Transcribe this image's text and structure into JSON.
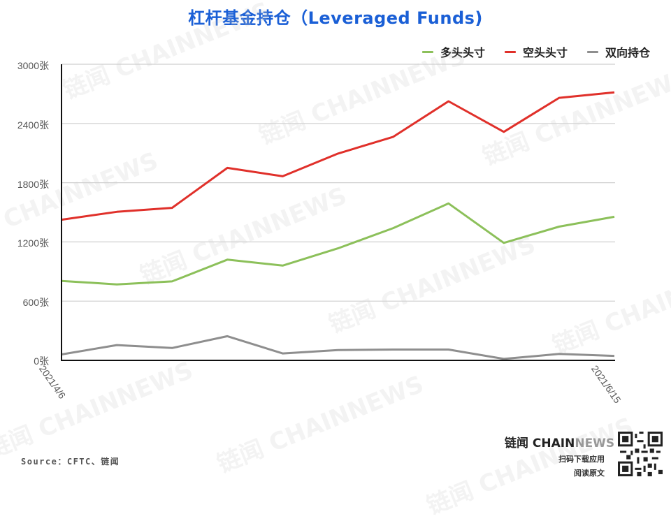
{
  "title": "杠杆基金持仓（Leveraged Funds)",
  "legend": [
    {
      "label": "多头头寸",
      "color": "#8cc05a"
    },
    {
      "label": "空头头寸",
      "color": "#e0302a"
    },
    {
      "label": "双向持仓",
      "color": "#8e8e8e"
    }
  ],
  "y_axis": {
    "ticks": [
      "3000张",
      "2400张",
      "1800张",
      "1200张",
      "600张",
      "0张"
    ]
  },
  "x_axis": {
    "ticks": [
      "2021/4/6",
      "2021/6/15"
    ]
  },
  "source": "Source：CFTC、链闻",
  "brand": {
    "name_a": "链闻 CHAIN",
    "name_b": "NEWS",
    "line1": "扫码下载应用",
    "line2": "阅读原文"
  },
  "watermark_text": "链闻 CHAINNEWS",
  "chart_data": {
    "type": "line",
    "title": "杠杆基金持仓（Leveraged Funds)",
    "xlabel": "",
    "ylabel": "",
    "unit": "张",
    "ylim": [
      0,
      3000
    ],
    "yticks": [
      0,
      600,
      1200,
      1800,
      2400,
      3000
    ],
    "grid": true,
    "legend_position": "top-right",
    "x": [
      "2021/4/6",
      "2021/4/13",
      "2021/4/20",
      "2021/4/27",
      "2021/5/4",
      "2021/5/11",
      "2021/5/18",
      "2021/5/25",
      "2021/6/1",
      "2021/6/8",
      "2021/6/15"
    ],
    "x_tick_labels_shown": [
      "2021/4/6",
      "2021/6/15"
    ],
    "series": [
      {
        "name": "多头头寸",
        "color": "#8cc05a",
        "values": [
          805,
          770,
          800,
          1020,
          960,
          1135,
          1340,
          1590,
          1190,
          1355,
          1455
        ]
      },
      {
        "name": "空头头寸",
        "color": "#e0302a",
        "values": [
          1425,
          1505,
          1545,
          1950,
          1865,
          2095,
          2265,
          2625,
          2315,
          2660,
          2715
        ]
      },
      {
        "name": "双向持仓",
        "color": "#8e8e8e",
        "values": [
          60,
          155,
          125,
          245,
          70,
          105,
          110,
          110,
          15,
          65,
          45
        ]
      }
    ]
  }
}
